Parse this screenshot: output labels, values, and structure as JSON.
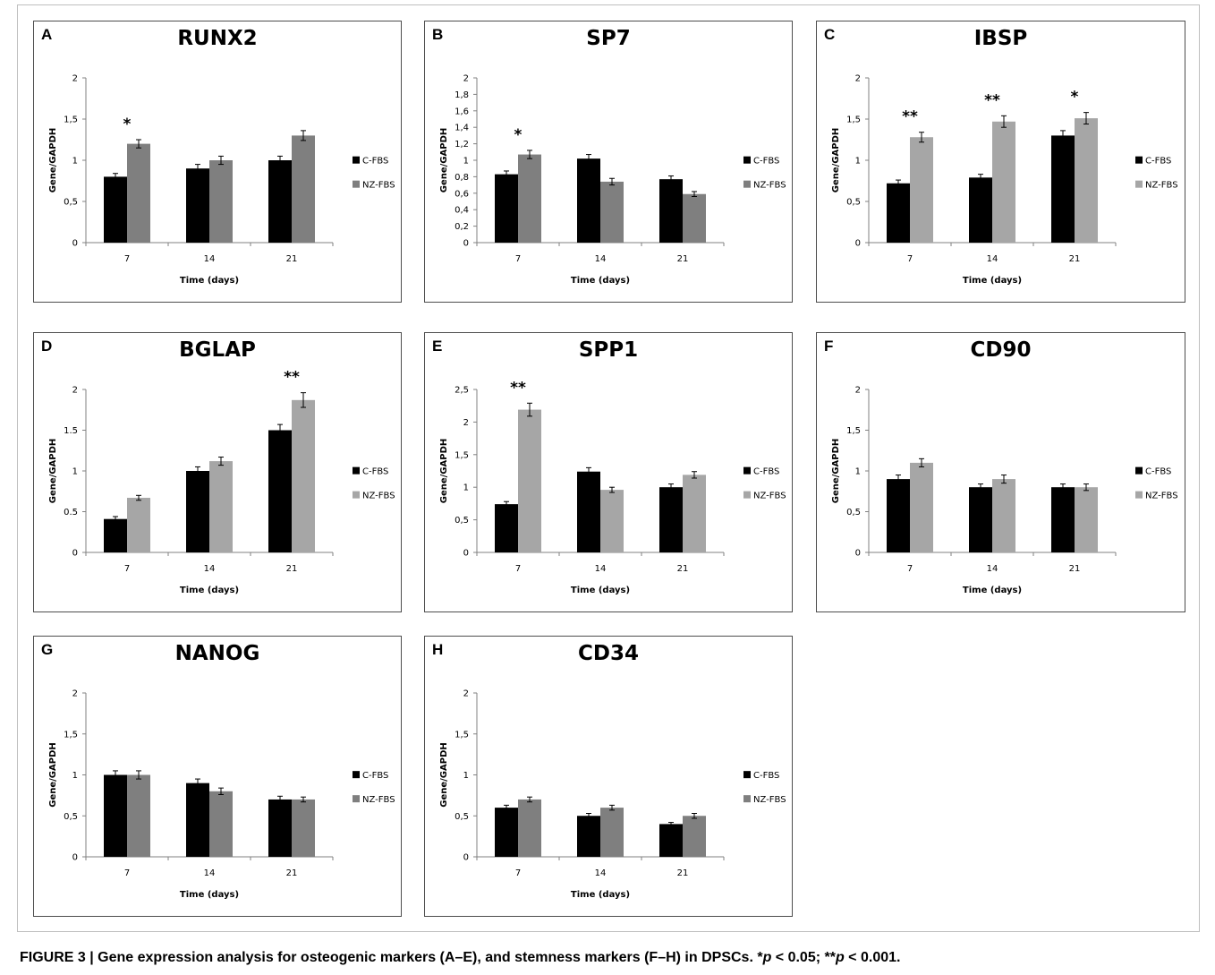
{
  "caption": {
    "label": "FIGURE 3 |",
    "text_a": " Gene expression analysis for osteogenic markers (A–E), and stemness markers (F–H) in DPSCs. *",
    "p1": "p",
    "text_b": " < 0.05; **",
    "p2": "p",
    "text_c": " < 0.001."
  },
  "colors": {
    "c_fbs": "#000000",
    "nz_fbs_dark": "#7f7f7f",
    "nz_fbs_light": "#a6a6a6",
    "axis": "#808080"
  },
  "chart_data": [
    {
      "panel": "A",
      "type": "bar",
      "title": "RUNX2",
      "xlabel": "Time (days)",
      "ylabel": "Gene/GAPDH",
      "categories": [
        "7",
        "14",
        "21"
      ],
      "ylim": [
        0,
        2
      ],
      "yticks": [
        "0",
        "0,5",
        "1",
        "1,5",
        "2"
      ],
      "series": [
        {
          "name": "C-FBS",
          "values": [
            0.8,
            0.9,
            1.0
          ],
          "errors": [
            0.04,
            0.05,
            0.05
          ],
          "color": "#000000"
        },
        {
          "name": "NZ-FBS",
          "values": [
            1.2,
            1.0,
            1.3
          ],
          "errors": [
            0.05,
            0.05,
            0.06
          ],
          "color": "#7f7f7f"
        }
      ],
      "annotations": [
        {
          "category": "7",
          "text": "*"
        }
      ],
      "legend_position": "right"
    },
    {
      "panel": "B",
      "type": "bar",
      "title": "SP7",
      "xlabel": "Time (days)",
      "ylabel": "Gene/GAPDH",
      "categories": [
        "7",
        "14",
        "21"
      ],
      "ylim": [
        0,
        2
      ],
      "yticks": [
        "0",
        "0,2",
        "0,4",
        "0,6",
        "0,8",
        "1",
        "1,2",
        "1,4",
        "1,6",
        "1,8",
        "2"
      ],
      "series": [
        {
          "name": "C-FBS",
          "values": [
            0.83,
            1.02,
            0.77
          ],
          "errors": [
            0.04,
            0.05,
            0.04
          ],
          "color": "#000000"
        },
        {
          "name": "NZ-FBS",
          "values": [
            1.07,
            0.74,
            0.59
          ],
          "errors": [
            0.05,
            0.04,
            0.03
          ],
          "color": "#7f7f7f"
        }
      ],
      "annotations": [
        {
          "category": "7",
          "text": "*"
        }
      ],
      "legend_position": "right"
    },
    {
      "panel": "C",
      "type": "bar",
      "title": "IBSP",
      "xlabel": "Time (days)",
      "ylabel": "Gene/GAPDH",
      "categories": [
        "7",
        "14",
        "21"
      ],
      "ylim": [
        0,
        2
      ],
      "yticks": [
        "0",
        "0,5",
        "1",
        "1,5",
        "2"
      ],
      "series": [
        {
          "name": "C-FBS",
          "values": [
            0.72,
            0.79,
            1.3
          ],
          "errors": [
            0.04,
            0.04,
            0.06
          ],
          "color": "#000000"
        },
        {
          "name": "NZ-FBS",
          "values": [
            1.28,
            1.47,
            1.51
          ],
          "errors": [
            0.06,
            0.07,
            0.07
          ],
          "color": "#a6a6a6"
        }
      ],
      "annotations": [
        {
          "category": "7",
          "text": "**"
        },
        {
          "category": "14",
          "text": "**"
        },
        {
          "category": "21",
          "text": "*"
        }
      ],
      "legend_position": "right"
    },
    {
      "panel": "D",
      "type": "bar",
      "title": "BGLAP",
      "xlabel": "Time (days)",
      "ylabel": "Gene/GAPDH",
      "categories": [
        "7",
        "14",
        "21"
      ],
      "ylim": [
        0,
        2
      ],
      "yticks": [
        "0",
        "0.5",
        "1",
        "1.5",
        "2"
      ],
      "series": [
        {
          "name": "C-FBS",
          "values": [
            0.41,
            1.0,
            1.5
          ],
          "errors": [
            0.03,
            0.05,
            0.07
          ],
          "color": "#000000"
        },
        {
          "name": "NZ-FBS",
          "values": [
            0.67,
            1.12,
            1.87
          ],
          "errors": [
            0.03,
            0.05,
            0.09
          ],
          "color": "#a6a6a6"
        }
      ],
      "annotations": [
        {
          "category": "21",
          "text": "**"
        }
      ],
      "legend_position": "right"
    },
    {
      "panel": "E",
      "type": "bar",
      "title": "SPP1",
      "xlabel": "Time (days)",
      "ylabel": "Gene/GAPDH",
      "categories": [
        "7",
        "14",
        "21"
      ],
      "ylim": [
        0,
        2.5
      ],
      "yticks": [
        "0",
        "0,5",
        "1",
        "1,5",
        "2",
        "2,5"
      ],
      "series": [
        {
          "name": "C-FBS",
          "values": [
            0.74,
            1.24,
            1.0
          ],
          "errors": [
            0.04,
            0.06,
            0.05
          ],
          "color": "#000000"
        },
        {
          "name": "NZ-FBS",
          "values": [
            2.19,
            0.96,
            1.19
          ],
          "errors": [
            0.1,
            0.04,
            0.05
          ],
          "color": "#a6a6a6"
        }
      ],
      "annotations": [
        {
          "category": "7",
          "text": "**"
        }
      ],
      "legend_position": "right"
    },
    {
      "panel": "F",
      "type": "bar",
      "title": "CD90",
      "xlabel": "Time (days)",
      "ylabel": "Gene/GAPDH",
      "categories": [
        "7",
        "14",
        "21"
      ],
      "ylim": [
        0,
        2
      ],
      "yticks": [
        "0",
        "0,5",
        "1",
        "1,5",
        "2"
      ],
      "series": [
        {
          "name": "C-FBS",
          "values": [
            0.9,
            0.8,
            0.8
          ],
          "errors": [
            0.05,
            0.04,
            0.04
          ],
          "color": "#000000"
        },
        {
          "name": "NZ-FBS",
          "values": [
            1.1,
            0.9,
            0.8
          ],
          "errors": [
            0.05,
            0.05,
            0.04
          ],
          "color": "#a6a6a6"
        }
      ],
      "annotations": [],
      "legend_position": "right"
    },
    {
      "panel": "G",
      "type": "bar",
      "title": "NANOG",
      "xlabel": "Time (days)",
      "ylabel": "Gene/GAPDH",
      "categories": [
        "7",
        "14",
        "21"
      ],
      "ylim": [
        0,
        2
      ],
      "yticks": [
        "0",
        "0,5",
        "1",
        "1,5",
        "2"
      ],
      "series": [
        {
          "name": "C-FBS",
          "values": [
            1.0,
            0.9,
            0.7
          ],
          "errors": [
            0.05,
            0.05,
            0.04
          ],
          "color": "#000000"
        },
        {
          "name": "NZ-FBS",
          "values": [
            1.0,
            0.8,
            0.7
          ],
          "errors": [
            0.05,
            0.04,
            0.03
          ],
          "color": "#7f7f7f"
        }
      ],
      "annotations": [],
      "legend_position": "right"
    },
    {
      "panel": "H",
      "type": "bar",
      "title": "CD34",
      "xlabel": "Time (days)",
      "ylabel": "Gene/GAPDH",
      "categories": [
        "7",
        "14",
        "21"
      ],
      "ylim": [
        0,
        2
      ],
      "yticks": [
        "0",
        "0,5",
        "1",
        "1,5",
        "2"
      ],
      "series": [
        {
          "name": "C-FBS",
          "values": [
            0.6,
            0.5,
            0.4
          ],
          "errors": [
            0.03,
            0.03,
            0.02
          ],
          "color": "#000000"
        },
        {
          "name": "NZ-FBS",
          "values": [
            0.7,
            0.6,
            0.5
          ],
          "errors": [
            0.03,
            0.03,
            0.03
          ],
          "color": "#7f7f7f"
        }
      ],
      "annotations": [],
      "legend_position": "right"
    }
  ]
}
